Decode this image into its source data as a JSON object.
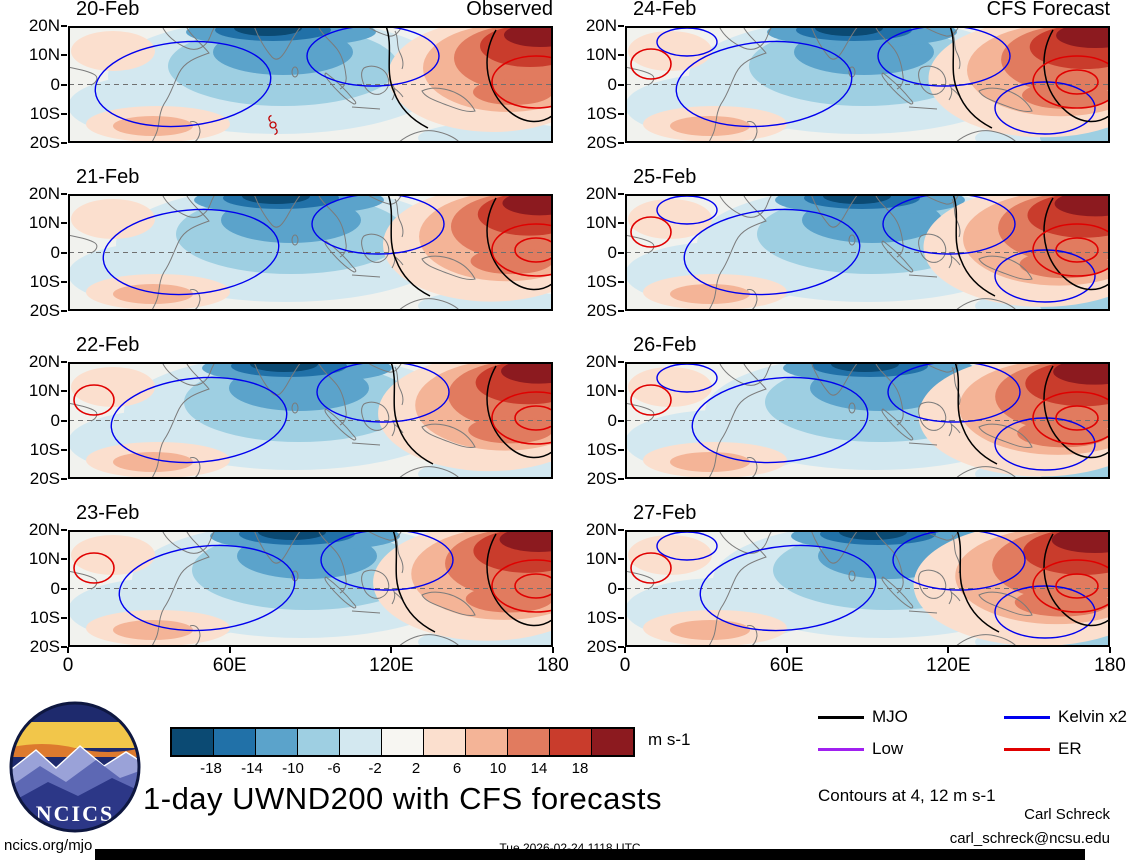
{
  "title": "1-day UWND200 with CFS forecasts",
  "panels": [
    {
      "date": "20-Feb",
      "column_title": "Observed"
    },
    {
      "date": "21-Feb"
    },
    {
      "date": "22-Feb"
    },
    {
      "date": "23-Feb"
    },
    {
      "date": "24-Feb",
      "column_title": "CFS Forecast"
    },
    {
      "date": "25-Feb"
    },
    {
      "date": "26-Feb"
    },
    {
      "date": "27-Feb"
    }
  ],
  "axes": {
    "lat_ticks": [
      "20N",
      "10N",
      "0",
      "10S",
      "20S"
    ],
    "lon_ticks": [
      "0",
      "60E",
      "120E",
      "180"
    ]
  },
  "colorbar": {
    "colors": [
      "#0b4a73",
      "#2171a8",
      "#5ba3cb",
      "#9ecfe2",
      "#d3e8f0",
      "#f7f6f2",
      "#fbdfce",
      "#f4b497",
      "#e17b5f",
      "#c93c2c",
      "#8c1a1f"
    ],
    "labels": [
      "-18",
      "-14",
      "-10",
      "-6",
      "-2",
      "2",
      "6",
      "10",
      "14",
      "18"
    ],
    "units": "m s-1"
  },
  "legend": {
    "items": [
      {
        "label": "MJO",
        "color": "#000000"
      },
      {
        "label": "Kelvin x2",
        "color": "#0000ee"
      },
      {
        "label": "Low",
        "color": "#a020f0"
      },
      {
        "label": "ER",
        "color": "#e00000"
      }
    ],
    "note": "Contours at 4, 12 m s-1"
  },
  "logo": {
    "text": "NCICS"
  },
  "footer": {
    "site": "ncics.org/mjo",
    "timestamp": "Tue 2026-02-24 1118 UTC",
    "author": "Carl Schreck",
    "email": "carl_schreck@ncsu.edu"
  },
  "chart_data": {
    "type": "heatmap",
    "subtype": "filled_contour_longitude_latitude_maps",
    "title": "1-day UWND200 with CFS forecasts",
    "variable": "200 hPa zonal wind anomaly (UWND200)",
    "units": "m s-1",
    "panel_grid": {
      "rows": 4,
      "cols": 2
    },
    "columns": [
      {
        "heading": "Observed",
        "dates": [
          "20-Feb",
          "21-Feb",
          "22-Feb",
          "23-Feb"
        ]
      },
      {
        "heading": "CFS Forecast",
        "dates": [
          "24-Feb",
          "25-Feb",
          "26-Feb",
          "27-Feb"
        ]
      }
    ],
    "x_axis": {
      "ticks": [
        "0",
        "60E",
        "120E",
        "180"
      ],
      "range_deg_east": [
        0,
        180
      ]
    },
    "y_axis": {
      "ticks": [
        "20N",
        "10N",
        "0",
        "10S",
        "20S"
      ],
      "range_deg_lat": [
        -20,
        20
      ]
    },
    "fill_levels": [
      -18,
      -14,
      -10,
      -6,
      -2,
      2,
      6,
      10,
      14,
      18
    ],
    "line_contour_levels": [
      4,
      12
    ],
    "overlays": [
      {
        "name": "MJO",
        "color": "#000000"
      },
      {
        "name": "Kelvin x2",
        "color": "#0000ee"
      },
      {
        "name": "Low",
        "color": "#a020f0"
      },
      {
        "name": "ER",
        "color": "#e00000"
      }
    ],
    "qualitative_pattern": "Negative (blue) zonal wind anomalies centered over the Indian Ocean near 60E-100E with a dark-blue core along 20N; strong positive (red) anomalies over the west Pacific from about 130E to 180, intensifying and expanding in the later CFS forecast panels; blue Kelvin, black MJO and red ER contour lines overlay the shading."
  }
}
